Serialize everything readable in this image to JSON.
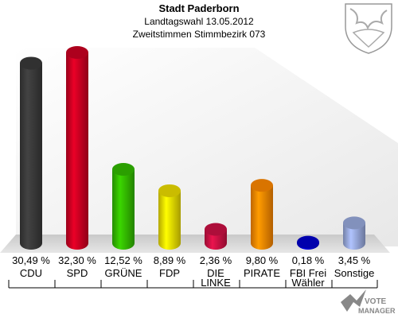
{
  "header": {
    "title": "Stadt Paderborn",
    "subtitle1": "Landtagswahl 13.05.2012",
    "subtitle2": "Zweitstimmen Stimmbezirk 073"
  },
  "chart_data": {
    "type": "bar",
    "title": "Stadt Paderborn",
    "categories": [
      "CDU",
      "SPD",
      "GRÜNE",
      "FDP",
      "DIE LINKE",
      "PIRATE",
      "FBI Frei Wähler",
      "Sonstige"
    ],
    "category_lines": [
      [
        "CDU"
      ],
      [
        "SPD"
      ],
      [
        "GRÜNE"
      ],
      [
        "FDP"
      ],
      [
        "DIE",
        "LINKE"
      ],
      [
        "PIRATE"
      ],
      [
        "FBI Frei",
        "Wähler"
      ],
      [
        "Sonstige"
      ]
    ],
    "values": [
      30.49,
      32.3,
      12.52,
      8.89,
      2.36,
      9.8,
      0.18,
      3.45
    ],
    "value_labels": [
      "30,49 %",
      "32,30 %",
      "12,52 %",
      "8,89 %",
      "2,36 %",
      "9,80 %",
      "0,18 %",
      "3,45 %"
    ],
    "colors": [
      "#3a3a3a",
      "#cc0022",
      "#33bb00",
      "#eedd00",
      "#cc1144",
      "#ff8800",
      "#0000cc",
      "#99aadd"
    ],
    "ylim": [
      0,
      32.3
    ],
    "grid": false,
    "legend": "none"
  },
  "watermark": "VOTE MANAGER",
  "icons": {
    "crest": "coat-of-arms-icon",
    "logo": "vote-manager-logo"
  }
}
